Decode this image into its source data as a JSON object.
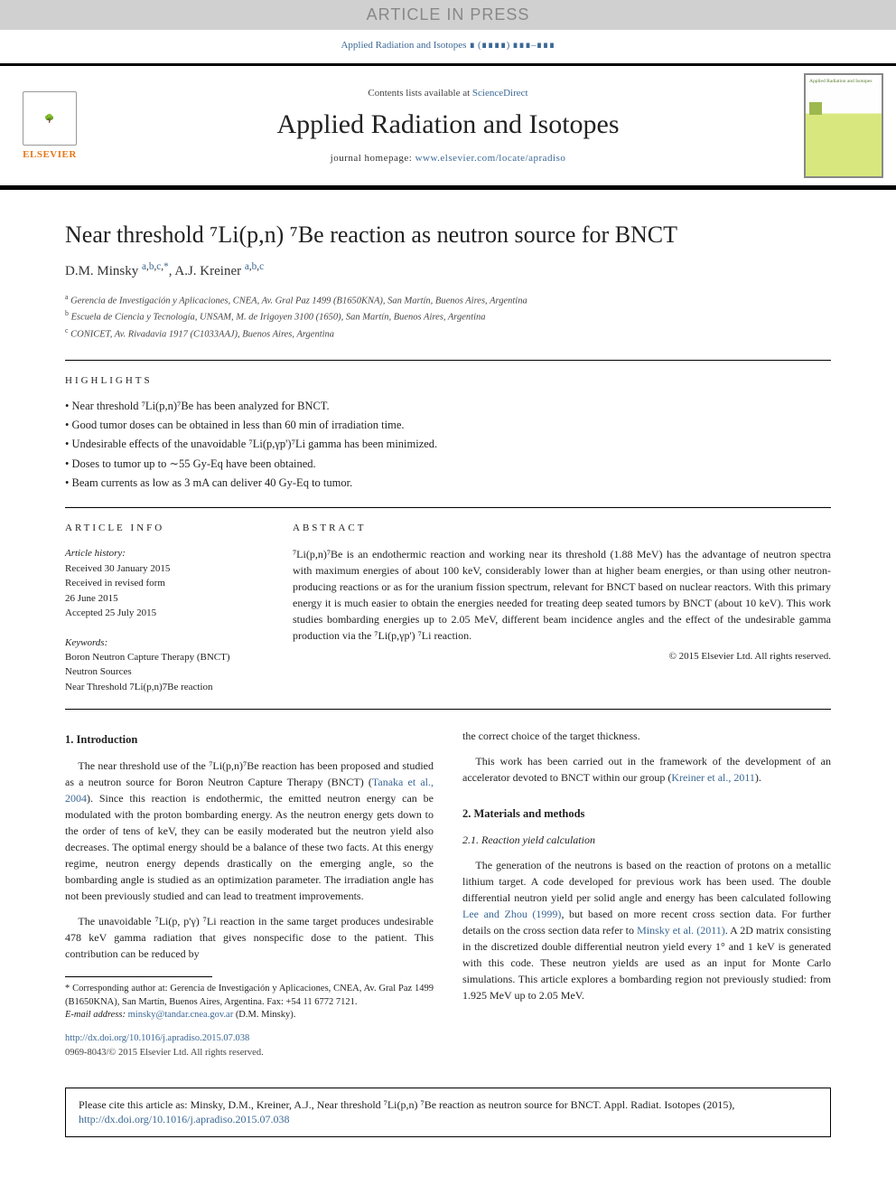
{
  "banner": {
    "text": "ARTICLE IN PRESS"
  },
  "journal_ref": "Applied Radiation and Isotopes ∎ (∎∎∎∎) ∎∎∎–∎∎∎",
  "header": {
    "contents_prefix": "Contents lists available at ",
    "contents_link": "ScienceDirect",
    "journal_name": "Applied Radiation and Isotopes",
    "homepage_prefix": "journal homepage: ",
    "homepage_url": "www.elsevier.com/locate/apradiso",
    "elsevier_label": "ELSEVIER",
    "cover_title": "Applied Radiation and Isotopes"
  },
  "title": "Near threshold ⁷Li(p,n) ⁷Be reaction as neutron source for BNCT",
  "authors_html": "D.M. Minsky <sup><a href=\"#\">a</a>,<a href=\"#\">b</a>,<a href=\"#\">c</a>,<a href=\"#\">*</a></sup>, A.J. Kreiner <sup><a href=\"#\">a</a>,<a href=\"#\">b</a>,<a href=\"#\">c</a></sup>",
  "affiliations": [
    "<sup>a</sup> Gerencia de Investigación y Aplicaciones, CNEA, Av. Gral Paz 1499 (B1650KNA), San Martín, Buenos Aires, Argentina",
    "<sup>b</sup> Escuela de Ciencia y Tecnología, UNSAM, M. de Irigoyen 3100 (1650), San Martín, Buenos Aires, Argentina",
    "<sup>c</sup> CONICET, Av. Rivadavia 1917 (C1033AAJ), Buenos Aires, Argentina"
  ],
  "highlights_label": "HIGHLIGHTS",
  "highlights": [
    "Near threshold ⁷Li(p,n)⁷Be has been analyzed for BNCT.",
    "Good tumor doses can be obtained in less than 60 min of irradiation time.",
    "Undesirable effects of the unavoidable ⁷Li(p,γp')⁷Li gamma has been minimized.",
    "Doses to tumor up to ∼55 Gy-Eq have been obtained.",
    "Beam currents as low as 3 mA can deliver 40 Gy-Eq to tumor."
  ],
  "article_info_label": "ARTICLE INFO",
  "abstract_label": "ABSTRACT",
  "history": {
    "label": "Article history:",
    "received": "Received 30 January 2015",
    "revised": "Received in revised form",
    "revised_date": "26 June 2015",
    "accepted": "Accepted 25 July 2015"
  },
  "keywords_label": "Keywords:",
  "keywords": [
    "Boron Neutron Capture Therapy (BNCT)",
    "Neutron Sources",
    "Near Threshold 7Li(p,n)7Be reaction"
  ],
  "abstract_text": "⁷Li(p,n)⁷Be is an endothermic reaction and working near its threshold (1.88 MeV) has the advantage of neutron spectra with maximum energies of about 100 keV, considerably lower than at higher beam energies, or than using other neutron-producing reactions or as for the uranium fission spectrum, relevant for BNCT based on nuclear reactors. With this primary energy it is much easier to obtain the energies needed for treating deep seated tumors by BNCT (about 10 keV). This work studies bombarding energies up to 2.05 MeV, different beam incidence angles and the effect of the undesirable gamma production via the ⁷Li(p,γp') ⁷Li reaction.",
  "abstract_copyright": "© 2015 Elsevier Ltd. All rights reserved.",
  "sections": {
    "intro_heading": "1.  Introduction",
    "intro_p1": "The near threshold use of the ⁷Li(p,n)⁷Be reaction has been proposed and studied as a neutron source for Boron Neutron Capture Therapy (BNCT) (",
    "intro_p1_ref": "Tanaka et al., 2004",
    "intro_p1b": "). Since this reaction is endothermic, the emitted neutron energy can be modulated with the proton bombarding energy. As the neutron energy gets down to the order of tens of keV, they can be easily moderated but the neutron yield also decreases. The optimal energy should be a balance of these two facts. At this energy regime, neutron energy depends drastically on the emerging angle, so the bombarding angle is studied as an optimization parameter. The irradiation angle has not been previously studied and can lead to treatment improvements.",
    "intro_p2": "The unavoidable ⁷Li(p, p'γ) ⁷Li reaction in the same target produces undesirable 478 keV gamma radiation that gives nonspecific dose to the patient. This contribution can be reduced by",
    "col2_p1": "the correct choice of the target thickness.",
    "col2_p2a": "This work has been carried out in the framework of the development of an accelerator devoted to BNCT within our group (",
    "col2_p2_ref": "Kreiner et al., 2011",
    "col2_p2b": ").",
    "mm_heading": "2.  Materials and methods",
    "mm_sub": "2.1.  Reaction yield calculation",
    "mm_p1a": "The generation of the neutrons is based on the reaction of protons on a metallic lithium target. A code developed for previous work has been used. The double differential neutron yield per solid angle and energy has been calculated following ",
    "mm_p1_ref1": "Lee and Zhou (1999)",
    "mm_p1b": ", but based on more recent cross section data. For further details on the cross section data refer to ",
    "mm_p1_ref2": "Minsky et al. (2011)",
    "mm_p1c": ". A 2D matrix consisting in the discretized double differential neutron yield every 1° and 1 keV is generated with this code. These neutron yields are used as an input for Monte Carlo simulations. This article explores a bombarding region not previously studied: from 1.925 MeV up to 2.05 MeV."
  },
  "footnote": {
    "corr": "* Corresponding author at: Gerencia de Investigación y Aplicaciones, CNEA, Av. Gral Paz 1499 (B1650KNA), San Martín, Buenos Aires, Argentina. Fax: +54 11 6772 7121.",
    "email_label": "E-mail address: ",
    "email": "minsky@tandar.cnea.gov.ar",
    "email_suffix": " (D.M. Minsky)."
  },
  "doi": {
    "url": "http://dx.doi.org/10.1016/j.apradiso.2015.07.038",
    "issn": "0969-8043/© 2015 Elsevier Ltd. All rights reserved."
  },
  "cite_box": {
    "text_a": "Please cite this article as: Minsky, D.M., Kreiner, A.J., Near threshold ⁷Li(p,n) ⁷Be reaction as neutron source for BNCT. Appl. Radiat. Isotopes (2015), ",
    "link": "http://dx.doi.org/10.1016/j.apradiso.2015.07.038"
  },
  "colors": {
    "link": "#3b6895",
    "elsevier_orange": "#e67817",
    "banner_bg": "#d0d0d0",
    "banner_fg": "#888888"
  }
}
